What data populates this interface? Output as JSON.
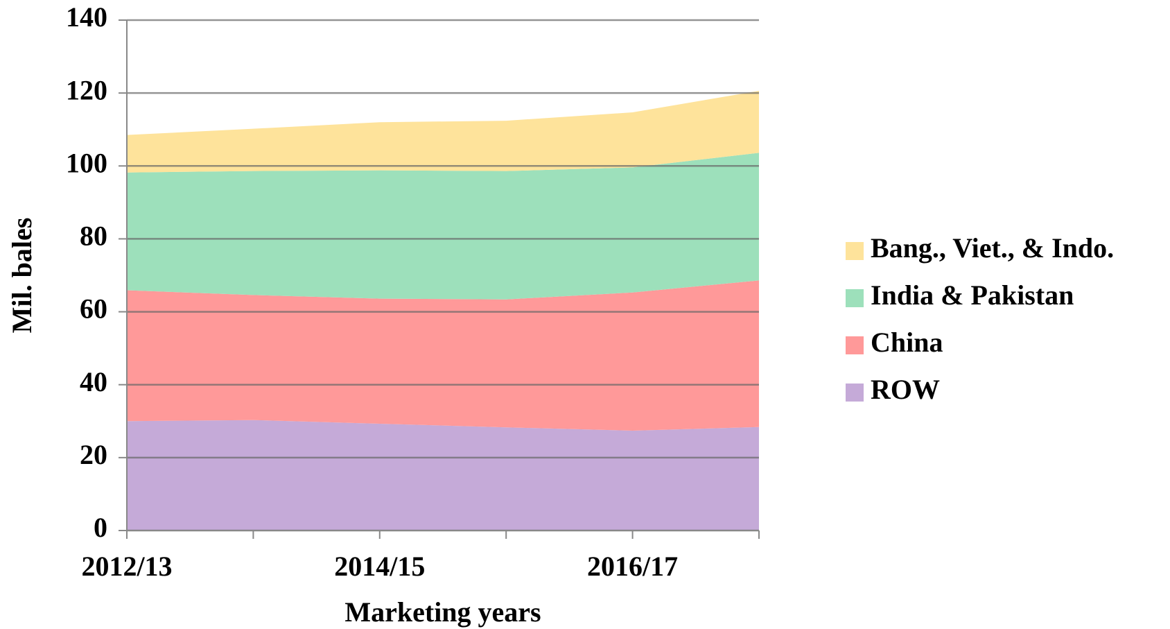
{
  "chart_data": {
    "type": "stacked_area",
    "ylabel": "Mil. bales",
    "xlabel": "Marketing years",
    "categories": [
      "2012/13",
      null,
      "2014/15",
      null,
      "2016/17",
      null
    ],
    "series": [
      {
        "name": "ROW",
        "color": "#c5aad8",
        "values": [
          30.0,
          30.3,
          29.3,
          28.3,
          27.4,
          28.4
        ]
      },
      {
        "name": "China",
        "color": "#ff9999",
        "values": [
          35.9,
          34.3,
          34.3,
          35.1,
          37.9,
          40.2
        ]
      },
      {
        "name": "India & Pakistan",
        "color": "#9de0bb",
        "values": [
          32.3,
          34.0,
          35.2,
          35.2,
          34.3,
          35.0
        ]
      },
      {
        "name": "Bang., Viet., & Indo.",
        "color": "#fee39b",
        "values": [
          10.3,
          11.6,
          13.2,
          13.8,
          15.1,
          17.0
        ]
      }
    ],
    "ylim": [
      0,
      140
    ],
    "yticks": [
      0,
      20,
      40,
      60,
      80,
      100,
      120,
      140
    ],
    "grid": true,
    "legend": "right"
  }
}
